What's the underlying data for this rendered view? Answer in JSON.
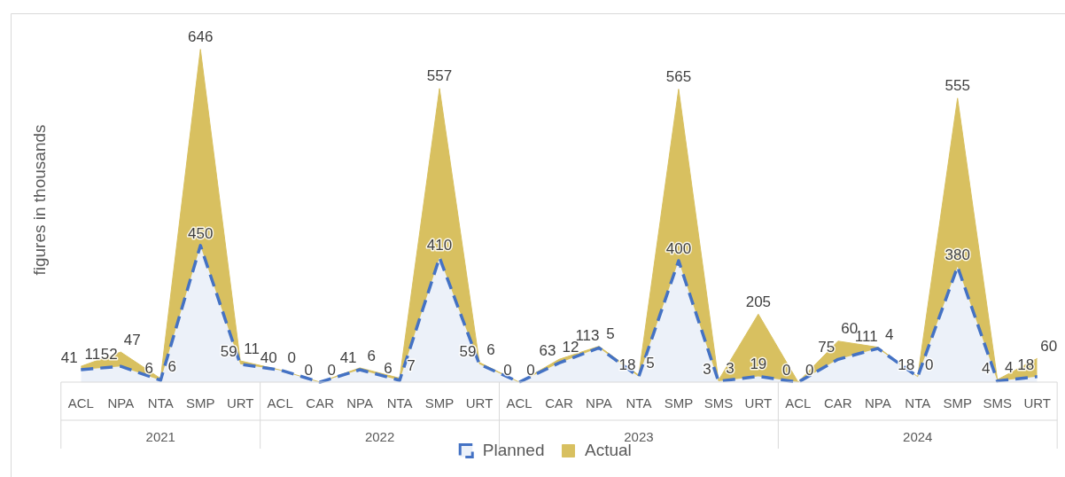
{
  "chart_data": {
    "type": "area",
    "ylabel": "figures in thousands",
    "stacked": true,
    "data_labels": true,
    "legend": "bottom",
    "grid": false,
    "categories": [
      "ACL",
      "NPA",
      "NTA",
      "SMP",
      "URT",
      "ACL",
      "CAR",
      "NPA",
      "NTA",
      "SMP",
      "URT",
      "ACL",
      "CAR",
      "NPA",
      "NTA",
      "SMP",
      "SMS",
      "URT",
      "ACL",
      "CAR",
      "NPA",
      "NTA",
      "SMP",
      "SMS",
      "URT"
    ],
    "annotations": [
      "2021",
      "2022",
      "2023",
      "2024"
    ],
    "series": [
      {
        "name": "Planned",
        "color": "#4472c4",
        "line_style": "dashed",
        "values": [
          41,
          52,
          6,
          450,
          59,
          40,
          0,
          41,
          6,
          410,
          59,
          0,
          63,
          113,
          18,
          400,
          3,
          19,
          0,
          75,
          111,
          18,
          380,
          4,
          18
        ]
      },
      {
        "name": "Actual",
        "color": "#d8c060",
        "values": [
          11,
          47,
          6,
          646,
          11,
          0,
          0,
          6,
          7,
          557,
          6,
          0,
          12,
          5,
          5,
          565,
          3,
          205,
          0,
          60,
          4,
          0,
          555,
          4,
          60
        ]
      }
    ]
  }
}
